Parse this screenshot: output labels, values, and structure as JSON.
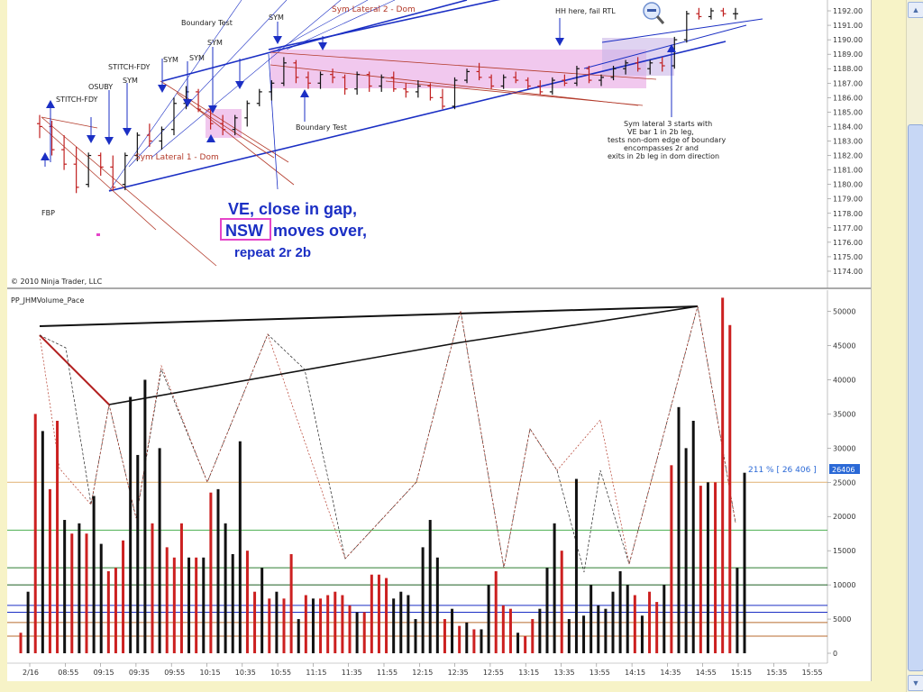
{
  "window": {
    "copyright": "© 2010 Ninja Trader, LLC",
    "lower_panel_title": "PP_JHMVolume_Pace"
  },
  "annotations": {
    "big_text_lines": [
      "VE, close in gap,",
      "NSW",
      "moves over,",
      "repeat 2r 2b"
    ],
    "labels": [
      {
        "id": "boundary-test-top",
        "text": "Boundary Test"
      },
      {
        "id": "sym-1",
        "text": "SYM"
      },
      {
        "id": "sym-2",
        "text": "SYM"
      },
      {
        "id": "sym-3",
        "text": "SYM"
      },
      {
        "id": "sym-4",
        "text": "SYM"
      },
      {
        "id": "sym-5",
        "text": "SYM"
      },
      {
        "id": "stitch-fdy-1",
        "text": "STITCH-FDY"
      },
      {
        "id": "stitch-fdy-2",
        "text": "STITCH-FDY"
      },
      {
        "id": "osuby",
        "text": "OSUBY"
      },
      {
        "id": "fbp",
        "text": "FBP"
      },
      {
        "id": "sym-lateral-1",
        "text": "Sym Lateral 1 - Dom"
      },
      {
        "id": "sym-lateral-2",
        "text": "Sym Lateral 2 - Dom"
      },
      {
        "id": "boundary-test-mid",
        "text": "Boundary Test"
      },
      {
        "id": "hh-here",
        "text": "HH here, fail RTL"
      },
      {
        "id": "note-1",
        "text": "Sym lateral 3 starts with"
      },
      {
        "id": "note-2",
        "text": "VE bar 1 in 2b leg,"
      },
      {
        "id": "note-3",
        "text": "tests non-dom edge of boundary"
      },
      {
        "id": "note-4",
        "text": "encompasses 2r and"
      },
      {
        "id": "note-5",
        "text": "exits in 2b leg in dom direction"
      }
    ],
    "readout": "211 % [ 26 406 ]",
    "last_value_tag": "26406"
  },
  "colors": {
    "up_volume": "#cc2020",
    "down_volume": "#111111",
    "trendline": "#1b2fc4",
    "pink_box": "#e59ae0",
    "lateral_line": "#b33a2a"
  },
  "chart_data": [
    {
      "type": "line",
      "panel": "price",
      "y_tick_labels": [
        "1192.00",
        "1191.00",
        "1190.00",
        "1189.00",
        "1188.00",
        "1187.00",
        "1186.00",
        "1185.00",
        "1184.00",
        "1183.00",
        "1182.00",
        "1181.00",
        "1180.00",
        "1179.00",
        "1178.00",
        "1177.00",
        "1176.00",
        "1175.00",
        "1174.00"
      ],
      "ylim": [
        1173.75,
        1192.25
      ],
      "x_tick_labels": [
        "2/16",
        "08:55",
        "09:15",
        "09:35",
        "09:55",
        "10:15",
        "10:35",
        "10:55",
        "11:15",
        "11:35",
        "11:55",
        "12:15",
        "12:35",
        "12:55",
        "13:15",
        "13:35",
        "13:55",
        "14:15",
        "14:35",
        "14:55",
        "15:15",
        "15:35",
        "15:55"
      ],
      "bars": [
        {
          "o": 1184.2,
          "h": 1184.8,
          "l": 1183.2,
          "c": 1184.0
        },
        {
          "o": 1184.0,
          "h": 1184.4,
          "l": 1182.0,
          "c": 1182.4
        },
        {
          "o": 1182.4,
          "h": 1183.4,
          "l": 1181.0,
          "c": 1181.4
        },
        {
          "o": 1181.4,
          "h": 1182.6,
          "l": 1179.4,
          "c": 1179.8
        },
        {
          "o": 1180.0,
          "h": 1182.2,
          "l": 1179.8,
          "c": 1182.0
        },
        {
          "o": 1182.0,
          "h": 1182.2,
          "l": 1180.6,
          "c": 1181.2
        },
        {
          "o": 1181.2,
          "h": 1182.0,
          "l": 1179.6,
          "c": 1179.8
        },
        {
          "o": 1180.0,
          "h": 1182.2,
          "l": 1179.6,
          "c": 1182.0
        },
        {
          "o": 1182.0,
          "h": 1183.6,
          "l": 1181.6,
          "c": 1183.4
        },
        {
          "o": 1183.4,
          "h": 1184.2,
          "l": 1182.6,
          "c": 1183.0
        },
        {
          "o": 1183.0,
          "h": 1184.0,
          "l": 1182.4,
          "c": 1183.8
        },
        {
          "o": 1183.8,
          "h": 1186.0,
          "l": 1183.4,
          "c": 1185.6
        },
        {
          "o": 1185.6,
          "h": 1186.8,
          "l": 1185.2,
          "c": 1186.4
        },
        {
          "o": 1186.4,
          "h": 1186.6,
          "l": 1185.0,
          "c": 1185.2
        },
        {
          "o": 1185.2,
          "h": 1185.4,
          "l": 1183.8,
          "c": 1184.2
        },
        {
          "o": 1184.2,
          "h": 1184.8,
          "l": 1183.4,
          "c": 1183.8
        },
        {
          "o": 1183.8,
          "h": 1184.8,
          "l": 1183.4,
          "c": 1184.6
        },
        {
          "o": 1184.6,
          "h": 1185.8,
          "l": 1184.0,
          "c": 1185.6
        },
        {
          "o": 1185.6,
          "h": 1186.6,
          "l": 1185.4,
          "c": 1186.4
        },
        {
          "o": 1186.4,
          "h": 1187.2,
          "l": 1185.8,
          "c": 1187.0
        },
        {
          "o": 1187.0,
          "h": 1188.8,
          "l": 1186.8,
          "c": 1188.4
        },
        {
          "o": 1188.4,
          "h": 1188.6,
          "l": 1187.0,
          "c": 1187.4
        },
        {
          "o": 1187.4,
          "h": 1187.8,
          "l": 1186.6,
          "c": 1187.0
        },
        {
          "o": 1187.0,
          "h": 1187.8,
          "l": 1186.6,
          "c": 1187.6
        },
        {
          "o": 1187.6,
          "h": 1188.0,
          "l": 1187.0,
          "c": 1187.4
        },
        {
          "o": 1187.4,
          "h": 1187.6,
          "l": 1186.2,
          "c": 1186.6
        },
        {
          "o": 1186.6,
          "h": 1187.8,
          "l": 1186.2,
          "c": 1187.6
        },
        {
          "o": 1187.6,
          "h": 1187.8,
          "l": 1186.4,
          "c": 1186.8
        },
        {
          "o": 1186.8,
          "h": 1187.6,
          "l": 1186.4,
          "c": 1187.4
        },
        {
          "o": 1187.4,
          "h": 1187.8,
          "l": 1186.4,
          "c": 1186.6
        },
        {
          "o": 1186.6,
          "h": 1187.0,
          "l": 1186.0,
          "c": 1186.4
        },
        {
          "o": 1186.4,
          "h": 1187.2,
          "l": 1186.0,
          "c": 1186.8
        },
        {
          "o": 1186.8,
          "h": 1187.0,
          "l": 1185.8,
          "c": 1186.0
        },
        {
          "o": 1186.0,
          "h": 1186.6,
          "l": 1185.2,
          "c": 1185.4
        },
        {
          "o": 1185.4,
          "h": 1187.4,
          "l": 1185.2,
          "c": 1187.2
        },
        {
          "o": 1187.2,
          "h": 1188.0,
          "l": 1187.0,
          "c": 1187.8
        },
        {
          "o": 1187.8,
          "h": 1188.4,
          "l": 1187.2,
          "c": 1187.4
        },
        {
          "o": 1187.4,
          "h": 1187.6,
          "l": 1186.6,
          "c": 1186.8
        },
        {
          "o": 1186.8,
          "h": 1187.6,
          "l": 1186.6,
          "c": 1187.4
        },
        {
          "o": 1187.4,
          "h": 1187.8,
          "l": 1187.0,
          "c": 1187.2
        },
        {
          "o": 1187.2,
          "h": 1187.4,
          "l": 1186.6,
          "c": 1186.8
        },
        {
          "o": 1186.8,
          "h": 1187.2,
          "l": 1186.2,
          "c": 1186.4
        },
        {
          "o": 1186.4,
          "h": 1187.4,
          "l": 1186.2,
          "c": 1187.2
        },
        {
          "o": 1187.2,
          "h": 1187.6,
          "l": 1186.8,
          "c": 1187.0
        },
        {
          "o": 1187.0,
          "h": 1188.2,
          "l": 1186.8,
          "c": 1188.0
        },
        {
          "o": 1188.0,
          "h": 1188.2,
          "l": 1187.0,
          "c": 1187.2
        },
        {
          "o": 1187.2,
          "h": 1187.6,
          "l": 1186.8,
          "c": 1187.4
        },
        {
          "o": 1187.4,
          "h": 1188.2,
          "l": 1187.2,
          "c": 1188.0
        },
        {
          "o": 1188.0,
          "h": 1188.6,
          "l": 1187.6,
          "c": 1188.4
        },
        {
          "o": 1188.4,
          "h": 1188.8,
          "l": 1187.8,
          "c": 1188.0
        },
        {
          "o": 1188.0,
          "h": 1188.6,
          "l": 1187.6,
          "c": 1188.4
        },
        {
          "o": 1188.4,
          "h": 1188.8,
          "l": 1187.8,
          "c": 1188.2
        },
        {
          "o": 1188.2,
          "h": 1190.2,
          "l": 1188.0,
          "c": 1190.0
        },
        {
          "o": 1190.0,
          "h": 1192.0,
          "l": 1189.8,
          "c": 1191.8
        },
        {
          "o": 1191.8,
          "h": 1192.2,
          "l": 1191.4,
          "c": 1191.6
        },
        {
          "o": 1191.6,
          "h": 1192.2,
          "l": 1191.4,
          "c": 1192.0
        },
        {
          "o": 1192.0,
          "h": 1192.2,
          "l": 1191.6,
          "c": 1191.8
        },
        {
          "o": 1191.8,
          "h": 1192.2,
          "l": 1191.4,
          "c": 1191.8
        }
      ]
    },
    {
      "type": "bar",
      "panel": "volume",
      "title": "PP_JHMVolume_Pace",
      "y_tick_labels": [
        "50000",
        "45000",
        "40000",
        "35000",
        "30000",
        "25000",
        "20000",
        "15000",
        "10000",
        "5000",
        "0"
      ],
      "ylim": [
        0,
        51000
      ],
      "values": [
        3000,
        9000,
        35000,
        32500,
        24000,
        34000,
        19500,
        17500,
        19000,
        17500,
        23000,
        16000,
        12000,
        12500,
        16500,
        37500,
        29000,
        40000,
        19000,
        30000,
        15500,
        14000,
        19000,
        14000,
        14000,
        14000,
        23500,
        24000,
        19000,
        14500,
        31000,
        15000,
        9000,
        12500,
        8000,
        9000,
        8000,
        14500,
        5000,
        8500,
        8000,
        8000,
        8500,
        9000,
        8500,
        7000,
        6000,
        6000,
        11500,
        11500,
        11000,
        8000,
        9000,
        8500,
        5000,
        15500,
        19500,
        14000,
        5000,
        6500,
        4000,
        4500,
        3500,
        3500,
        10000,
        12000,
        7000,
        6500,
        3000,
        2500,
        5000,
        6500,
        12500,
        19000,
        15000,
        5000,
        25500,
        5500,
        10000,
        7000,
        6500,
        9000,
        12000,
        10000,
        8500,
        5500,
        9000,
        7500,
        10000,
        27500,
        36000,
        30000,
        34000,
        24500,
        25000,
        25000,
        52000,
        48000,
        12500,
        26400
      ],
      "colors": [
        "r",
        "k",
        "r",
        "k",
        "r",
        "r",
        "k",
        "r",
        "k",
        "r",
        "k",
        "k",
        "r",
        "r",
        "r",
        "k",
        "k",
        "k",
        "r",
        "k",
        "r",
        "r",
        "r",
        "k",
        "r",
        "k",
        "r",
        "k",
        "k",
        "k",
        "k",
        "r",
        "r",
        "k",
        "r",
        "k",
        "r",
        "r",
        "k",
        "r",
        "k",
        "r",
        "r",
        "r",
        "r",
        "r",
        "k",
        "r",
        "r",
        "r",
        "r",
        "k",
        "k",
        "k",
        "k",
        "k",
        "k",
        "k",
        "r",
        "k",
        "r",
        "k",
        "r",
        "k",
        "k",
        "r",
        "r",
        "r",
        "k",
        "r",
        "r",
        "k",
        "k",
        "k",
        "r",
        "k",
        "k",
        "k",
        "k",
        "k",
        "k",
        "k",
        "k",
        "k",
        "r",
        "k",
        "r",
        "r",
        "k",
        "r",
        "k",
        "k",
        "k",
        "r",
        "k",
        "r",
        "r",
        "r",
        "k",
        "k"
      ],
      "reference_lines": [
        18000,
        25000
      ]
    }
  ]
}
